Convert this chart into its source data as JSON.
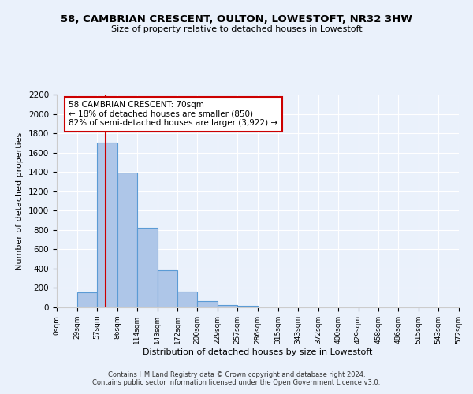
{
  "title": "58, CAMBRIAN CRESCENT, OULTON, LOWESTOFT, NR32 3HW",
  "subtitle": "Size of property relative to detached houses in Lowestoft",
  "xlabel": "Distribution of detached houses by size in Lowestoft",
  "ylabel": "Number of detached properties",
  "bar_edges": [
    0,
    29,
    57,
    86,
    114,
    143,
    172,
    200,
    229,
    257,
    286,
    315,
    343,
    372,
    400,
    429,
    458,
    486,
    515,
    543,
    572
  ],
  "bar_heights": [
    0,
    155,
    1700,
    1390,
    825,
    385,
    160,
    65,
    25,
    20,
    0,
    0,
    0,
    0,
    0,
    0,
    0,
    0,
    0,
    0
  ],
  "bar_color": "#aec6e8",
  "bar_edge_color": "#5b9bd5",
  "property_sqm": 70,
  "vline_color": "#cc0000",
  "annotation_line1": "58 CAMBRIAN CRESCENT: 70sqm",
  "annotation_line2": "← 18% of detached houses are smaller (850)",
  "annotation_line3": "82% of semi-detached houses are larger (3,922) →",
  "annotation_box_color": "#ffffff",
  "annotation_box_edge": "#cc0000",
  "ylim": [
    0,
    2200
  ],
  "yticks": [
    0,
    200,
    400,
    600,
    800,
    1000,
    1200,
    1400,
    1600,
    1800,
    2000,
    2200
  ],
  "tick_labels": [
    "0sqm",
    "29sqm",
    "57sqm",
    "86sqm",
    "114sqm",
    "143sqm",
    "172sqm",
    "200sqm",
    "229sqm",
    "257sqm",
    "286sqm",
    "315sqm",
    "343sqm",
    "372sqm",
    "400sqm",
    "429sqm",
    "458sqm",
    "486sqm",
    "515sqm",
    "543sqm",
    "572sqm"
  ],
  "footer1": "Contains HM Land Registry data © Crown copyright and database right 2024.",
  "footer2": "Contains public sector information licensed under the Open Government Licence v3.0.",
  "bg_color": "#eaf1fb",
  "plot_bg_color": "#eaf1fb"
}
